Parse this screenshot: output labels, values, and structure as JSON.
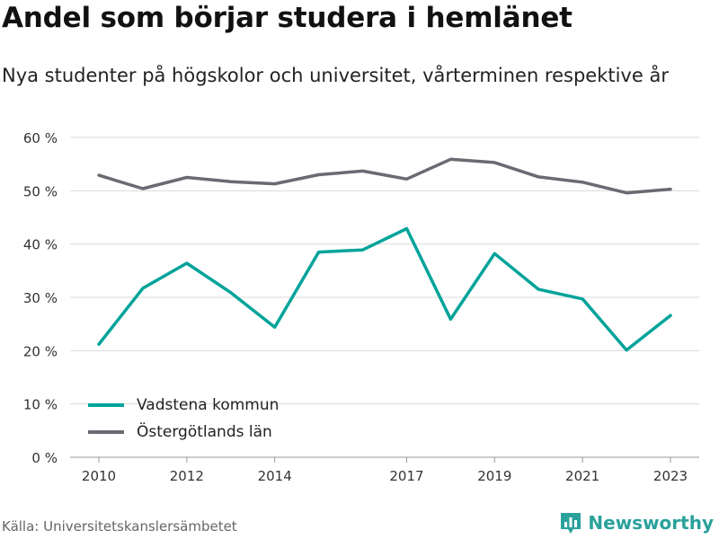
{
  "title": "Andel som börjar studera i hemlänet",
  "subtitle": "Nya studenter på högskolor och universitet, vårterminen respektive år",
  "source": "Källa: Universitetskanslersämbetet",
  "brand": "Newsworthy",
  "colors": {
    "series1": "#00a39a",
    "series2": "#6b6a72",
    "grid": "#d9d9d9",
    "text": "#333333",
    "brand": "#2aa19b"
  },
  "chart_data": {
    "type": "line",
    "x": [
      2010,
      2011,
      2012,
      2013,
      2014,
      2015,
      2016,
      2017,
      2018,
      2019,
      2020,
      2021,
      2022,
      2023
    ],
    "xticks": [
      2010,
      2012,
      2014,
      2017,
      2019,
      2021,
      2023
    ],
    "xlim": [
      2010,
      2023
    ],
    "ylim": [
      0,
      60
    ],
    "yticks": [
      0,
      10,
      20,
      30,
      40,
      50,
      60
    ],
    "yticklabels": [
      "0 %",
      "10 %",
      "20 %",
      "30 %",
      "40 %",
      "50 %",
      "60 %"
    ],
    "grid": true,
    "legend_position": "bottom-left",
    "series": [
      {
        "name": "Vadstena kommun",
        "color": "#00a39a",
        "values": [
          21.2,
          31.7,
          36.4,
          30.9,
          24.4,
          38.5,
          38.9,
          42.9,
          25.9,
          38.2,
          31.5,
          29.7,
          20.1,
          26.6
        ]
      },
      {
        "name": "Östergötlands län",
        "color": "#6b6a72",
        "values": [
          52.9,
          50.4,
          52.5,
          51.7,
          51.3,
          53.0,
          53.7,
          52.2,
          55.9,
          55.3,
          52.6,
          51.6,
          49.6,
          50.3
        ]
      }
    ]
  }
}
